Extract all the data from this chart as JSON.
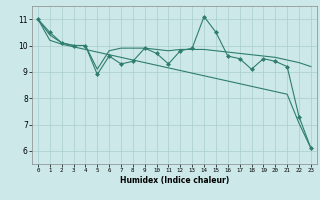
{
  "x": [
    0,
    1,
    2,
    3,
    4,
    5,
    6,
    7,
    8,
    9,
    10,
    11,
    12,
    13,
    14,
    15,
    16,
    17,
    18,
    19,
    20,
    21,
    22,
    23
  ],
  "series1": [
    11.0,
    10.5,
    10.1,
    10.0,
    10.0,
    8.9,
    9.6,
    9.3,
    9.4,
    9.9,
    9.7,
    9.3,
    9.8,
    9.9,
    11.1,
    10.5,
    9.6,
    9.5,
    9.1,
    9.5,
    9.4,
    9.2,
    7.3,
    6.1
  ],
  "series2": [
    11.0,
    10.4,
    10.1,
    10.0,
    10.0,
    9.1,
    9.8,
    9.9,
    9.9,
    9.9,
    9.85,
    9.8,
    9.85,
    9.85,
    9.85,
    9.8,
    9.75,
    9.7,
    9.65,
    9.6,
    9.55,
    9.45,
    9.35,
    9.2
  ],
  "series3": [
    11.0,
    10.2,
    10.05,
    9.95,
    9.85,
    9.75,
    9.65,
    9.55,
    9.45,
    9.35,
    9.25,
    9.15,
    9.05,
    8.95,
    8.85,
    8.75,
    8.65,
    8.55,
    8.45,
    8.35,
    8.25,
    8.15,
    7.05,
    6.1
  ],
  "color": "#2e7d6e",
  "bg_color": "#cce8e8",
  "grid_color": "#aacece",
  "xlabel": "Humidex (Indice chaleur)",
  "ylim": [
    5.5,
    11.5
  ],
  "xlim": [
    -0.5,
    23.5
  ],
  "yticks": [
    6,
    7,
    8,
    9,
    10,
    11
  ],
  "xticks": [
    0,
    1,
    2,
    3,
    4,
    5,
    6,
    7,
    8,
    9,
    10,
    11,
    12,
    13,
    14,
    15,
    16,
    17,
    18,
    19,
    20,
    21,
    22,
    23
  ]
}
